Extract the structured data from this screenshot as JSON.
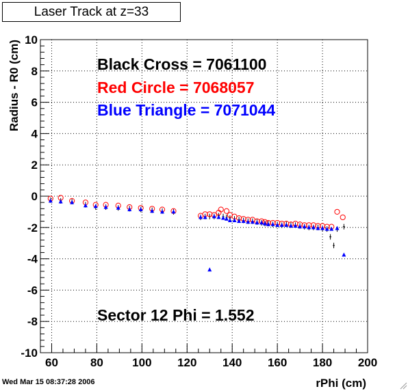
{
  "timestamp": "Wed Mar 15 08:37:28 2006",
  "chart_data": {
    "type": "scatter",
    "title": "Laser Track at z=33",
    "xlabel": "rPhi (cm)",
    "ylabel": "Radius - R0 (cm)",
    "xlim": [
      55,
      200
    ],
    "ylim": [
      -10,
      10
    ],
    "x_ticks": [
      60,
      80,
      100,
      120,
      140,
      160,
      180,
      200
    ],
    "y_ticks": [
      -10,
      -8,
      -6,
      -4,
      -2,
      0,
      2,
      4,
      6,
      8,
      10
    ],
    "grid": true,
    "annotations": [
      {
        "text": "Black Cross  = 7061100",
        "color": "#000000"
      },
      {
        "text": "Red Circle = 7068057",
        "color": "#ff0000"
      },
      {
        "text": "Blue Triangle = 7071044",
        "color": "#0000ff"
      },
      {
        "text": "Sector 12 Phi = 1.552",
        "color": "#000000"
      }
    ],
    "series": [
      {
        "marker": "cross",
        "color": "#000000",
        "points": [
          [
            59.5,
            -0.25
          ],
          [
            64,
            -0.3
          ],
          [
            69,
            -0.35
          ],
          [
            75,
            -0.55
          ],
          [
            79.5,
            -0.7
          ],
          [
            84,
            -0.7
          ],
          [
            89.5,
            -0.75
          ],
          [
            94.5,
            -0.8
          ],
          [
            99.5,
            -0.85
          ],
          [
            104.5,
            -0.9
          ],
          [
            109,
            -0.95
          ],
          [
            114,
            -1.0
          ],
          [
            126,
            -1.35
          ],
          [
            128,
            -1.3
          ],
          [
            130,
            -1.3
          ],
          [
            132,
            -1.3
          ],
          [
            134,
            -1.25
          ],
          [
            136,
            -1.3
          ],
          [
            137.5,
            -1.35
          ],
          [
            139,
            -1.4
          ],
          [
            141,
            -1.45
          ],
          [
            143,
            -1.5
          ],
          [
            145,
            -1.55
          ],
          [
            147,
            -1.6
          ],
          [
            149,
            -1.6
          ],
          [
            151,
            -1.65
          ],
          [
            153,
            -1.7
          ],
          [
            154.5,
            -1.75
          ],
          [
            156,
            -1.75
          ],
          [
            158,
            -1.8
          ],
          [
            160,
            -1.8
          ],
          [
            162,
            -1.85
          ],
          [
            164,
            -1.8
          ],
          [
            166,
            -1.85
          ],
          [
            168,
            -1.85
          ],
          [
            170,
            -1.9
          ],
          [
            172,
            -1.95
          ],
          [
            174,
            -2.0
          ],
          [
            176,
            -2.0
          ],
          [
            178,
            -2.0
          ],
          [
            180,
            -2.05
          ],
          [
            182,
            -2.1
          ],
          [
            183.5,
            -2.6
          ],
          [
            185,
            -3.15
          ],
          [
            186.5,
            -2.1
          ],
          [
            189.5,
            -1.95
          ]
        ]
      },
      {
        "marker": "open-circle",
        "color": "#ff0000",
        "points": [
          [
            59.5,
            -0.15
          ],
          [
            64,
            -0.1
          ],
          [
            69,
            -0.3
          ],
          [
            75,
            -0.4
          ],
          [
            79.5,
            -0.55
          ],
          [
            84,
            -0.55
          ],
          [
            89.5,
            -0.6
          ],
          [
            94.5,
            -0.7
          ],
          [
            99.5,
            -0.75
          ],
          [
            104.5,
            -0.8
          ],
          [
            109,
            -0.85
          ],
          [
            114,
            -0.95
          ],
          [
            126,
            -1.25
          ],
          [
            128,
            -1.15
          ],
          [
            130,
            -1.15
          ],
          [
            132,
            -1.2
          ],
          [
            134,
            -1.05
          ],
          [
            135,
            -0.85
          ],
          [
            137.5,
            -0.95
          ],
          [
            139,
            -1.2
          ],
          [
            141,
            -1.3
          ],
          [
            143,
            -1.4
          ],
          [
            145,
            -1.45
          ],
          [
            147,
            -1.5
          ],
          [
            149,
            -1.5
          ],
          [
            151,
            -1.6
          ],
          [
            153,
            -1.6
          ],
          [
            154.5,
            -1.65
          ],
          [
            156,
            -1.7
          ],
          [
            158,
            -1.7
          ],
          [
            160,
            -1.7
          ],
          [
            162,
            -1.75
          ],
          [
            164,
            -1.75
          ],
          [
            166,
            -1.8
          ],
          [
            168,
            -1.75
          ],
          [
            170,
            -1.8
          ],
          [
            172,
            -1.85
          ],
          [
            174,
            -1.85
          ],
          [
            176,
            -1.85
          ],
          [
            178,
            -1.9
          ],
          [
            180,
            -1.9
          ],
          [
            182,
            -1.95
          ],
          [
            184,
            -1.95
          ],
          [
            186.5,
            -1.0
          ],
          [
            189,
            -1.35
          ]
        ]
      },
      {
        "marker": "filled-triangle",
        "color": "#0000ff",
        "points": [
          [
            59.5,
            -0.3
          ],
          [
            64,
            -0.35
          ],
          [
            69,
            -0.4
          ],
          [
            75,
            -0.6
          ],
          [
            79.5,
            -0.65
          ],
          [
            84,
            -0.7
          ],
          [
            89.5,
            -0.75
          ],
          [
            94.5,
            -0.85
          ],
          [
            99.5,
            -0.85
          ],
          [
            104.5,
            -0.95
          ],
          [
            109,
            -1.0
          ],
          [
            114,
            -1.0
          ],
          [
            126,
            -1.35
          ],
          [
            128,
            -1.35
          ],
          [
            130,
            -4.7
          ],
          [
            132,
            -1.3
          ],
          [
            134,
            -1.35
          ],
          [
            136,
            -1.4
          ],
          [
            137.5,
            -1.45
          ],
          [
            139,
            -1.55
          ],
          [
            141,
            -1.55
          ],
          [
            143,
            -1.6
          ],
          [
            145,
            -1.6
          ],
          [
            147,
            -1.65
          ],
          [
            149,
            -1.65
          ],
          [
            151,
            -1.7
          ],
          [
            153,
            -1.7
          ],
          [
            154.5,
            -1.75
          ],
          [
            156,
            -1.8
          ],
          [
            158,
            -1.8
          ],
          [
            160,
            -1.85
          ],
          [
            162,
            -1.85
          ],
          [
            164,
            -1.85
          ],
          [
            166,
            -1.9
          ],
          [
            168,
            -1.9
          ],
          [
            170,
            -1.95
          ],
          [
            172,
            -1.95
          ],
          [
            174,
            -2.0
          ],
          [
            176,
            -2.0
          ],
          [
            178,
            -2.05
          ],
          [
            180,
            -2.05
          ],
          [
            182,
            -2.1
          ],
          [
            184,
            -2.1
          ],
          [
            186.5,
            -2.05
          ],
          [
            189.5,
            -3.75
          ]
        ]
      }
    ]
  }
}
